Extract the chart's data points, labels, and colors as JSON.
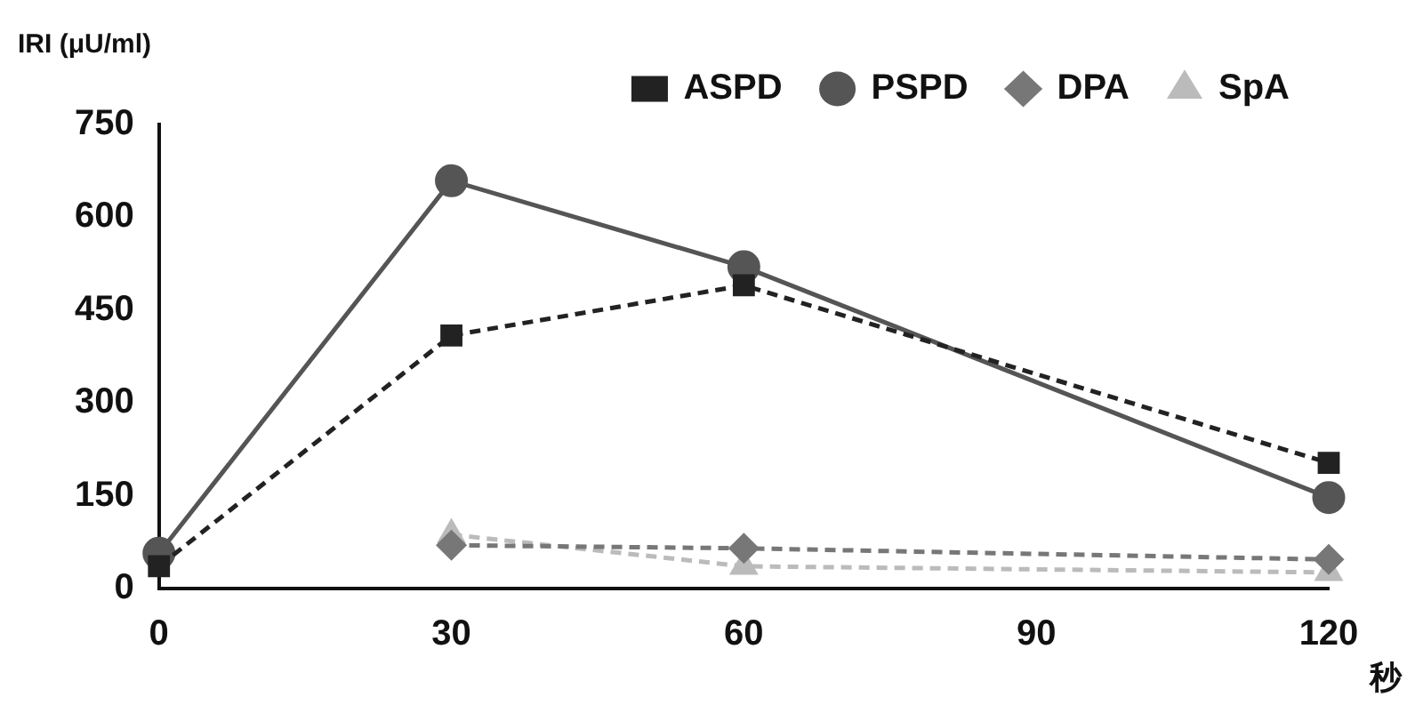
{
  "chart_data": {
    "type": "line",
    "ylabel": "IRI (μU/ml)",
    "xlabel": "秒",
    "x": [
      0,
      30,
      60,
      120
    ],
    "xlim": [
      0,
      120
    ],
    "xticks": [
      0,
      30,
      60,
      90,
      120
    ],
    "ylim": [
      0,
      750
    ],
    "yticks": [
      0,
      150,
      300,
      450,
      600,
      750
    ],
    "grid": false,
    "legend": "top right",
    "series": [
      {
        "name": "ASPD",
        "color": "#222222",
        "values": [
          36,
          409,
          490,
          203
        ],
        "marker": "square",
        "line_style": "dashed"
      },
      {
        "name": "PSPD",
        "color": "#555555",
        "values": [
          57,
          659,
          520,
          147
        ],
        "marker": "circle",
        "line_style": "solid"
      },
      {
        "name": "DPA",
        "color": "#777777",
        "values": [
          null,
          70,
          65,
          47
        ],
        "marker": "diamond",
        "line_style": "dashed"
      },
      {
        "name": "SpA",
        "color": "#bbbbbb",
        "values": [
          null,
          87,
          36,
          26
        ],
        "marker": "triangle",
        "line_style": "dashed"
      }
    ]
  }
}
